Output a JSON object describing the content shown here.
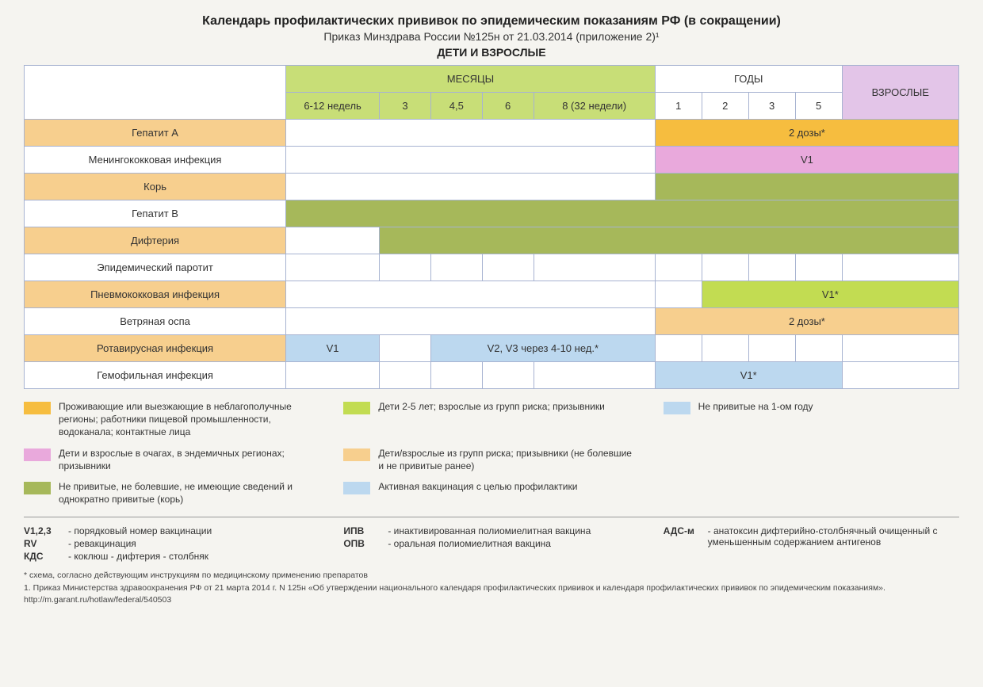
{
  "colors": {
    "page_bg": "#f5f4f0",
    "border": "#a7b3d1",
    "text": "#333333",
    "months_hdr": "#c8de77",
    "years_hdr": "#ffffff",
    "adults_hdr": "#e3c5e8",
    "orange": "#f6bd3f",
    "pink": "#e9a9dc",
    "olive": "#a6b85a",
    "lime": "#c2dc52",
    "peach": "#f7cf8e",
    "lightblue": "#bcd8ef",
    "white": "#ffffff"
  },
  "header": {
    "title": "Календарь профилактических прививок по эпидемическим показаниям РФ (в сокращении)",
    "subtitle": "Приказ Минздрава России №125н от 21.03.2014 (приложение 2)¹",
    "section": "ДЕТИ И ВЗРОСЛЫЕ"
  },
  "table": {
    "col_widths_pct": [
      28,
      10,
      5.5,
      5.5,
      5.5,
      13,
      5,
      5,
      5,
      5,
      12.5
    ],
    "group_headers": {
      "months": "МЕСЯЦЫ",
      "years": "ГОДЫ",
      "adults": "ВЗРОСЛЫЕ"
    },
    "sub_headers": [
      "6-12 недель",
      "3",
      "4,5",
      "6",
      "8 (32 недели)",
      "1",
      "2",
      "3",
      "5"
    ],
    "rows": [
      {
        "label": "Гепатит А",
        "label_bg": "peach",
        "cells": [
          {
            "span": 5,
            "bg": "white",
            "text": ""
          },
          {
            "span": 5,
            "bg": "orange",
            "text": "2 дозы*"
          }
        ]
      },
      {
        "label": "Менингококковая инфекция",
        "label_bg": "white",
        "cells": [
          {
            "span": 5,
            "bg": "white",
            "text": ""
          },
          {
            "span": 5,
            "bg": "pink",
            "text": "V1"
          }
        ]
      },
      {
        "label": "Корь",
        "label_bg": "peach",
        "cells": [
          {
            "span": 5,
            "bg": "white",
            "text": ""
          },
          {
            "span": 5,
            "bg": "olive",
            "text": ""
          }
        ]
      },
      {
        "label": "Гепатит В",
        "label_bg": "white",
        "cells": [
          {
            "span": 10,
            "bg": "olive",
            "text": ""
          }
        ]
      },
      {
        "label": "Дифтерия",
        "label_bg": "peach",
        "cells": [
          {
            "span": 1,
            "bg": "white",
            "text": ""
          },
          {
            "span": 9,
            "bg": "olive",
            "text": ""
          }
        ]
      },
      {
        "label": "Эпидемический паротит",
        "label_bg": "white",
        "cells": [
          {
            "span": 1,
            "bg": "white",
            "text": ""
          },
          {
            "span": 1,
            "bg": "white",
            "text": ""
          },
          {
            "span": 1,
            "bg": "white",
            "text": ""
          },
          {
            "span": 1,
            "bg": "white",
            "text": ""
          },
          {
            "span": 1,
            "bg": "white",
            "text": ""
          },
          {
            "span": 1,
            "bg": "white",
            "text": ""
          },
          {
            "span": 1,
            "bg": "white",
            "text": ""
          },
          {
            "span": 1,
            "bg": "white",
            "text": ""
          },
          {
            "span": 1,
            "bg": "white",
            "text": ""
          },
          {
            "span": 1,
            "bg": "white",
            "text": ""
          }
        ]
      },
      {
        "label": "Пневмококковая инфекция",
        "label_bg": "peach",
        "cells": [
          {
            "span": 5,
            "bg": "white",
            "text": ""
          },
          {
            "span": 1,
            "bg": "white",
            "text": ""
          },
          {
            "span": 4,
            "bg": "lime",
            "text": "V1*"
          }
        ]
      },
      {
        "label": "Ветряная оспа",
        "label_bg": "white",
        "cells": [
          {
            "span": 5,
            "bg": "white",
            "text": ""
          },
          {
            "span": 5,
            "bg": "peach",
            "text": "2 дозы*"
          }
        ]
      },
      {
        "label": "Ротавирусная инфекция",
        "label_bg": "peach",
        "cells": [
          {
            "span": 1,
            "bg": "lightblue",
            "text": "V1"
          },
          {
            "span": 1,
            "bg": "white",
            "text": ""
          },
          {
            "span": 3,
            "bg": "lightblue",
            "text": "V2, V3 через 4-10 нед.*"
          },
          {
            "span": 1,
            "bg": "white",
            "text": ""
          },
          {
            "span": 1,
            "bg": "white",
            "text": ""
          },
          {
            "span": 1,
            "bg": "white",
            "text": ""
          },
          {
            "span": 1,
            "bg": "white",
            "text": ""
          },
          {
            "span": 1,
            "bg": "white",
            "text": ""
          }
        ]
      },
      {
        "label": "Гемофильная инфекция",
        "label_bg": "white",
        "cells": [
          {
            "span": 1,
            "bg": "white",
            "text": ""
          },
          {
            "span": 1,
            "bg": "white",
            "text": ""
          },
          {
            "span": 1,
            "bg": "white",
            "text": ""
          },
          {
            "span": 1,
            "bg": "white",
            "text": ""
          },
          {
            "span": 1,
            "bg": "white",
            "text": ""
          },
          {
            "span": 4,
            "bg": "lightblue",
            "text": "V1*"
          },
          {
            "span": 1,
            "bg": "white",
            "text": ""
          }
        ]
      }
    ]
  },
  "legend": [
    {
      "color": "orange",
      "text": "Проживающие или выезжающие в неблагополучные регионы; работники пищевой промышленности, водоканала; контактные лица",
      "col": 0
    },
    {
      "color": "lime",
      "text": "Дети 2-5 лет; взрослые из групп риска; призывники",
      "col": 1
    },
    {
      "color": "lightblue",
      "text": "Не привитые на 1-ом году",
      "col": 2
    },
    {
      "color": "pink",
      "text": "Дети и взрослые в очагах, в эндемичных регионах; призывники",
      "col": 0
    },
    {
      "color": "peach",
      "text": "Дети/взрослые из групп риска; призывники (не болевшие и не привитые ранее)",
      "col": 1
    },
    {
      "color": "",
      "text": "",
      "col": 2
    },
    {
      "color": "olive",
      "text": "Не привитые, не болевшие, не имеющие сведений и однократно привитые (корь)",
      "col": 0
    },
    {
      "color": "lightblue",
      "text": "Активная вакцинация с целью профилактики",
      "col": 1
    },
    {
      "color": "",
      "text": "",
      "col": 2
    }
  ],
  "abbr": {
    "col0": [
      {
        "k": "V1,2,3",
        "v": "- порядковый номер вакцинации"
      },
      {
        "k": "RV",
        "v": "- ревакцинация"
      },
      {
        "k": "КДС",
        "v": "- коклюш - дифтерия - столбняк"
      }
    ],
    "col1": [
      {
        "k": "ИПВ",
        "v": "- инактивированная полиомиелитная вакцина"
      },
      {
        "k": "ОПВ",
        "v": "- оральная полиомиелитная вакцина"
      }
    ],
    "col2": [
      {
        "k": "АДС-м",
        "v": "- анатоксин дифтерийно-столбнячный очищенный с уменьшенным содержанием антигенов"
      }
    ]
  },
  "footnotes": [
    "*   схема, согласно действующим инструкциям по медицинскому применению препаратов",
    "1. Приказ Министерства здравоохранения РФ от 21 марта 2014 г. N 125н «Об утверждении национального календаря профилактических прививок и календаря профилактических прививок по эпидемическим показаниям». http://m.garant.ru/hotlaw/federal/540503"
  ]
}
